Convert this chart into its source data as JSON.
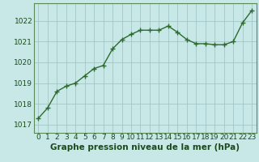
{
  "x": [
    0,
    1,
    2,
    3,
    4,
    5,
    6,
    7,
    8,
    9,
    10,
    11,
    12,
    13,
    14,
    15,
    16,
    17,
    18,
    19,
    20,
    21,
    22,
    23
  ],
  "y": [
    1017.3,
    1017.8,
    1018.6,
    1018.85,
    1019.0,
    1019.35,
    1019.7,
    1019.85,
    1020.65,
    1021.1,
    1021.35,
    1021.55,
    1021.55,
    1021.55,
    1021.75,
    1021.45,
    1021.1,
    1020.9,
    1020.9,
    1020.85,
    1020.85,
    1021.0,
    1021.9,
    1022.5
  ],
  "line_color": "#2d6a2d",
  "marker": "+",
  "marker_size": 4,
  "marker_color": "#2d6a2d",
  "background_color": "#c8e8e8",
  "grid_color": "#9bbfbf",
  "xlabel": "Graphe pression niveau de la mer (hPa)",
  "xlabel_fontsize": 7.5,
  "xlabel_color": "#1a4a1a",
  "ytick_labels": [
    "1017",
    "1018",
    "1019",
    "1020",
    "1021",
    "1022"
  ],
  "ytick_values": [
    1017,
    1018,
    1019,
    1020,
    1021,
    1022
  ],
  "xtick_labels": [
    "0",
    "1",
    "2",
    "3",
    "4",
    "5",
    "6",
    "7",
    "8",
    "9",
    "10",
    "11",
    "12",
    "13",
    "14",
    "15",
    "16",
    "17",
    "18",
    "19",
    "20",
    "21",
    "22",
    "23"
  ],
  "ylim": [
    1016.6,
    1022.85
  ],
  "xlim": [
    -0.5,
    23.5
  ],
  "tick_fontsize": 6.5,
  "tick_color": "#1a4a1a",
  "line_width": 1.0
}
